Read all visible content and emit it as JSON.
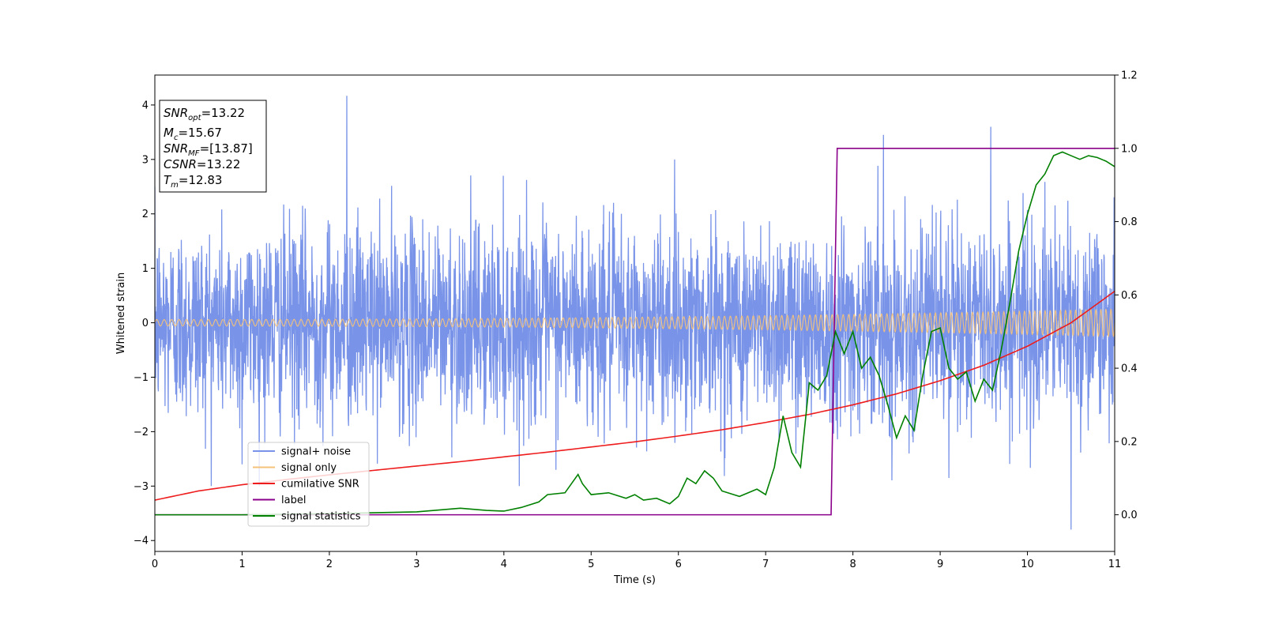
{
  "chart_data": {
    "type": "line",
    "xlabel": "Time (s)",
    "ylabel": "Whitened strain",
    "xlim": [
      0,
      11
    ],
    "ylim": [
      -4.2,
      4.55
    ],
    "y2lim": [
      -0.1,
      1.2
    ],
    "xticks": [
      0,
      1,
      2,
      3,
      4,
      5,
      6,
      7,
      8,
      9,
      10,
      11
    ],
    "yticks": [
      -4,
      -3,
      -2,
      -1,
      0,
      1,
      2,
      3,
      4
    ],
    "y2ticks": [
      "0.0",
      "0.2",
      "0.4",
      "0.6",
      "0.8",
      "1.0",
      "1.2"
    ],
    "grid": false,
    "legend_position": "lower-left",
    "info_box": {
      "position": "top-left",
      "lines": [
        {
          "base": "SNR",
          "sub": "opt",
          "value": "=13.22"
        },
        {
          "base": "M",
          "sub": "c",
          "value": "=15.67"
        },
        {
          "base": "SNR",
          "sub": "MF",
          "value": "=[13.87]"
        },
        {
          "base": "CSNR",
          "sub": "",
          "value": "=13.22"
        },
        {
          "base": "T",
          "sub": "m",
          "value": "=12.83"
        }
      ]
    },
    "series": [
      {
        "name": "signal+ noise",
        "color": "#7893e8",
        "axis": "left",
        "kind": "noise",
        "amplitude_rms": 0.9,
        "peaks": [
          [
            2.2,
            4.17
          ],
          [
            9.58,
            3.6
          ],
          [
            8.35,
            3.45
          ],
          [
            10.5,
            -3.8
          ],
          [
            1.0,
            -2.6
          ],
          [
            9.1,
            -2.85
          ]
        ]
      },
      {
        "name": "signal only",
        "color": "#f5c27a",
        "axis": "left",
        "kind": "chirp",
        "amplitude_start": 0.06,
        "amplitude_end": 0.25,
        "cycles": 160
      },
      {
        "name": "cumilative SNR",
        "color": "#ee1c1c",
        "axis": "right",
        "x": [
          0,
          0.5,
          1,
          1.5,
          2,
          2.5,
          3,
          3.5,
          4,
          4.5,
          5,
          5.5,
          6,
          6.5,
          7,
          7.5,
          8,
          8.5,
          9,
          9.5,
          10,
          10.5,
          11
        ],
        "y": [
          0.04,
          0.065,
          0.082,
          0.096,
          0.109,
          0.121,
          0.133,
          0.145,
          0.158,
          0.171,
          0.185,
          0.199,
          0.215,
          0.232,
          0.252,
          0.274,
          0.3,
          0.33,
          0.366,
          0.408,
          0.46,
          0.524,
          0.61
        ]
      },
      {
        "name": "label",
        "color": "#8b008b",
        "axis": "right",
        "x": [
          0,
          7.75,
          7.82,
          11
        ],
        "y": [
          0,
          0,
          1,
          1
        ]
      },
      {
        "name": "signal statistics",
        "color": "#008000",
        "axis": "right",
        "x": [
          0,
          1,
          2,
          3,
          3.5,
          3.8,
          4,
          4.2,
          4.4,
          4.5,
          4.7,
          4.85,
          4.9,
          5.0,
          5.2,
          5.4,
          5.5,
          5.6,
          5.75,
          5.9,
          6.0,
          6.1,
          6.2,
          6.3,
          6.4,
          6.5,
          6.7,
          6.9,
          7.0,
          7.1,
          7.2,
          7.3,
          7.4,
          7.5,
          7.6,
          7.7,
          7.8,
          7.9,
          8.0,
          8.1,
          8.2,
          8.3,
          8.4,
          8.5,
          8.6,
          8.7,
          8.8,
          8.9,
          9.0,
          9.1,
          9.2,
          9.3,
          9.4,
          9.5,
          9.6,
          9.7,
          9.8,
          9.9,
          10.0,
          10.1,
          10.2,
          10.3,
          10.4,
          10.5,
          10.6,
          10.7,
          10.8,
          10.9,
          11.0
        ],
        "y": [
          0,
          0,
          0.003,
          0.008,
          0.018,
          0.012,
          0.01,
          0.02,
          0.035,
          0.055,
          0.06,
          0.11,
          0.085,
          0.055,
          0.06,
          0.045,
          0.055,
          0.04,
          0.045,
          0.03,
          0.05,
          0.1,
          0.085,
          0.12,
          0.1,
          0.065,
          0.05,
          0.07,
          0.055,
          0.13,
          0.27,
          0.17,
          0.13,
          0.36,
          0.34,
          0.38,
          0.5,
          0.44,
          0.5,
          0.4,
          0.43,
          0.38,
          0.3,
          0.21,
          0.27,
          0.23,
          0.38,
          0.5,
          0.51,
          0.4,
          0.37,
          0.39,
          0.31,
          0.37,
          0.34,
          0.45,
          0.58,
          0.72,
          0.82,
          0.9,
          0.93,
          0.98,
          0.99,
          0.98,
          0.97,
          0.98,
          0.975,
          0.965,
          0.95
        ]
      }
    ]
  }
}
